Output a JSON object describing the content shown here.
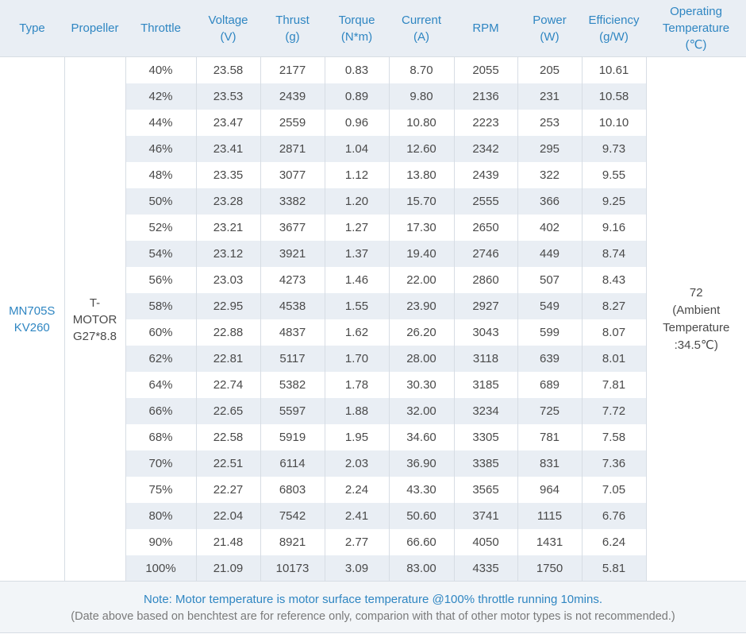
{
  "headers": {
    "type": "Type",
    "propeller": "Propeller",
    "throttle": "Throttle",
    "voltage": [
      "Voltage",
      "(V)"
    ],
    "thrust": [
      "Thrust",
      "(g)"
    ],
    "torque": [
      "Torque",
      "(N*m)"
    ],
    "current": [
      "Current",
      "(A)"
    ],
    "rpm": "RPM",
    "power": [
      "Power",
      "(W)"
    ],
    "efficiency": [
      "Efficiency",
      "(g/W)"
    ],
    "temperature": [
      "Operating",
      "Temperature",
      "(℃)"
    ]
  },
  "type": [
    "MN705S",
    "KV260"
  ],
  "propeller": [
    "T-",
    "MOTOR",
    "G27*8.8"
  ],
  "temperature": [
    "72",
    "(Ambient",
    "Temperature",
    ":34.5℃)"
  ],
  "rows": [
    [
      "40%",
      "23.58",
      "2177",
      "0.83",
      "8.70",
      "2055",
      "205",
      "10.61"
    ],
    [
      "42%",
      "23.53",
      "2439",
      "0.89",
      "9.80",
      "2136",
      "231",
      "10.58"
    ],
    [
      "44%",
      "23.47",
      "2559",
      "0.96",
      "10.80",
      "2223",
      "253",
      "10.10"
    ],
    [
      "46%",
      "23.41",
      "2871",
      "1.04",
      "12.60",
      "2342",
      "295",
      "9.73"
    ],
    [
      "48%",
      "23.35",
      "3077",
      "1.12",
      "13.80",
      "2439",
      "322",
      "9.55"
    ],
    [
      "50%",
      "23.28",
      "3382",
      "1.20",
      "15.70",
      "2555",
      "366",
      "9.25"
    ],
    [
      "52%",
      "23.21",
      "3677",
      "1.27",
      "17.30",
      "2650",
      "402",
      "9.16"
    ],
    [
      "54%",
      "23.12",
      "3921",
      "1.37",
      "19.40",
      "2746",
      "449",
      "8.74"
    ],
    [
      "56%",
      "23.03",
      "4273",
      "1.46",
      "22.00",
      "2860",
      "507",
      "8.43"
    ],
    [
      "58%",
      "22.95",
      "4538",
      "1.55",
      "23.90",
      "2927",
      "549",
      "8.27"
    ],
    [
      "60%",
      "22.88",
      "4837",
      "1.62",
      "26.20",
      "3043",
      "599",
      "8.07"
    ],
    [
      "62%",
      "22.81",
      "5117",
      "1.70",
      "28.00",
      "3118",
      "639",
      "8.01"
    ],
    [
      "64%",
      "22.74",
      "5382",
      "1.78",
      "30.30",
      "3185",
      "689",
      "7.81"
    ],
    [
      "66%",
      "22.65",
      "5597",
      "1.88",
      "32.00",
      "3234",
      "725",
      "7.72"
    ],
    [
      "68%",
      "22.58",
      "5919",
      "1.95",
      "34.60",
      "3305",
      "781",
      "7.58"
    ],
    [
      "70%",
      "22.51",
      "6114",
      "2.03",
      "36.90",
      "3385",
      "831",
      "7.36"
    ],
    [
      "75%",
      "22.27",
      "6803",
      "2.24",
      "43.30",
      "3565",
      "964",
      "7.05"
    ],
    [
      "80%",
      "22.04",
      "7542",
      "2.41",
      "50.60",
      "3741",
      "1115",
      "6.76"
    ],
    [
      "90%",
      "21.48",
      "8921",
      "2.77",
      "66.60",
      "4050",
      "1431",
      "6.24"
    ],
    [
      "100%",
      "21.09",
      "10173",
      "3.09",
      "83.00",
      "4335",
      "1750",
      "5.81"
    ]
  ],
  "note": {
    "line1": "Note: Motor temperature is motor surface temperature @100% throttle running 10mins.",
    "line2": "(Date above based on benchtest are for reference only, comparion with that of other motor types is not recommended.)"
  },
  "colors": {
    "header_text": "#2f86c2",
    "header_bg": "#e9eef4",
    "stripe_bg": "#e9eef4",
    "body_text": "#4a4a4a",
    "border": "#d7dde4"
  }
}
